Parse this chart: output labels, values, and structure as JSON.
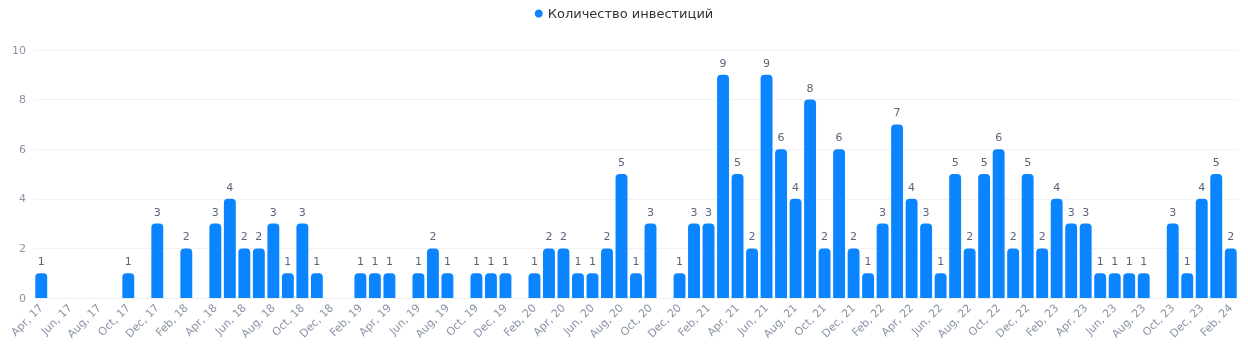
{
  "chart_data": {
    "type": "bar",
    "categories": [
      "Apr, 17",
      null,
      "Jun, 17",
      null,
      "Aug, 17",
      null,
      "Oct, 17",
      null,
      "Dec, 17",
      null,
      "Feb, 18",
      null,
      "Apr, 18",
      null,
      "Jun, 18",
      null,
      "Aug, 18",
      null,
      "Oct, 18",
      null,
      "Dec, 18",
      null,
      "Feb, 19",
      null,
      "Apr, 19",
      null,
      "Jun, 19",
      null,
      "Aug, 19",
      null,
      "Oct, 19",
      null,
      "Dec, 19",
      null,
      "Feb, 20",
      null,
      "Apr, 20",
      null,
      "Jun, 20",
      null,
      "Aug, 20",
      null,
      "Oct, 20",
      null,
      "Dec, 20",
      null,
      "Feb, 21",
      null,
      "Apr, 21",
      null,
      "Jun, 21",
      null,
      "Aug, 21",
      null,
      "Oct, 21",
      null,
      "Dec, 21",
      null,
      "Feb, 22",
      null,
      "Apr, 22",
      null,
      "Jun, 22",
      null,
      "Aug, 22",
      null,
      "Oct, 22",
      null,
      "Dec, 22",
      null,
      "Feb, 23",
      null,
      "Apr, 23",
      null,
      "Jun, 23",
      null,
      "Aug, 23",
      null,
      "Oct, 23",
      null,
      "Dec, 23",
      null,
      "Feb, 24"
    ],
    "series": [
      {
        "name": "Количество инвестиций",
        "color": "#0a84ff",
        "values": [
          1,
          0,
          0,
          0,
          0,
          0,
          1,
          0,
          3,
          0,
          2,
          0,
          3,
          4,
          2,
          2,
          3,
          1,
          3,
          1,
          0,
          0,
          1,
          1,
          1,
          0,
          1,
          2,
          1,
          0,
          1,
          1,
          1,
          0,
          1,
          2,
          2,
          1,
          1,
          2,
          5,
          1,
          3,
          0,
          1,
          3,
          3,
          9,
          5,
          2,
          9,
          6,
          4,
          8,
          2,
          6,
          2,
          1,
          3,
          7,
          4,
          3,
          1,
          5,
          2,
          5,
          6,
          2,
          5,
          2,
          4,
          3,
          3,
          1,
          1,
          1,
          1,
          0,
          3,
          1,
          4,
          5,
          2
        ],
        "value_labels": [
          "1",
          null,
          null,
          null,
          null,
          null,
          "1",
          null,
          "3",
          null,
          "2",
          null,
          "3",
          "4",
          "2",
          "2",
          "3",
          "1",
          "3",
          "1",
          null,
          null,
          "1",
          "1",
          "1",
          null,
          "1",
          "2",
          "1",
          null,
          "1",
          "1",
          "1",
          null,
          "1",
          "2",
          "2",
          "1",
          "1",
          "2",
          "5",
          "1",
          "3",
          null,
          "1",
          "3",
          "3",
          "9",
          "5",
          "2",
          "9",
          "6",
          "4",
          "8",
          "2",
          "6",
          "2",
          "1",
          "3",
          "7",
          "4",
          "3",
          "1",
          "5",
          "2",
          "5",
          "6",
          "2",
          "5",
          "2",
          "4",
          "3",
          "3",
          "1",
          "1",
          "1",
          "1",
          null,
          "3",
          "1",
          "4",
          "5",
          "2"
        ]
      }
    ],
    "ylim": [
      0,
      10
    ],
    "yticks": [
      0,
      2,
      4,
      6,
      8,
      10
    ],
    "grid": "y",
    "legend": "top"
  }
}
